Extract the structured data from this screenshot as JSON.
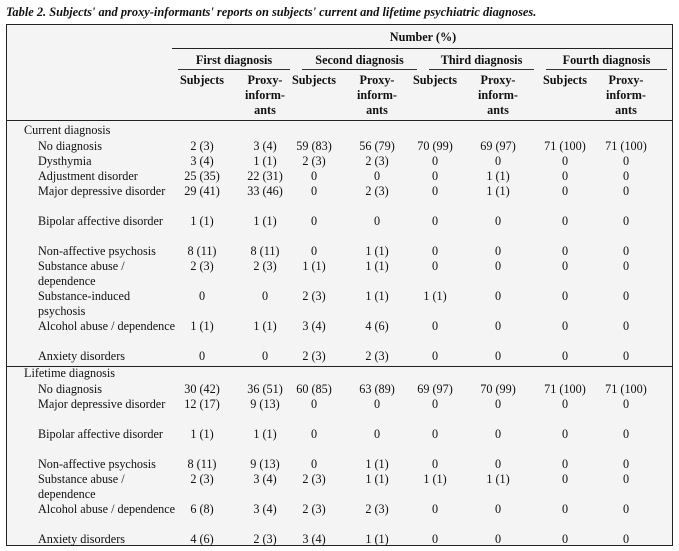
{
  "caption": "Table 2. Subjects' and proxy-informants' reports on subjects' current and lifetime psychiatric diagnoses.",
  "header": {
    "number_label": "Number (%)",
    "groups": [
      "First diagnosis",
      "Second diagnosis",
      "Third diagnosis",
      "Fourth diagnosis"
    ],
    "subjects_label": "Subjects",
    "proxy_label": "Proxy-\ninform-\nants"
  },
  "sections": [
    {
      "title": "Current diagnosis",
      "rows": [
        {
          "label": "No diagnosis",
          "values": [
            "2 (3)",
            "3 (4)",
            "59 (83)",
            "56 (79)",
            "70 (99)",
            "69 (97)",
            "71 (100)",
            "71 (100)"
          ]
        },
        {
          "label": "Dysthymia",
          "values": [
            "3 (4)",
            "1 (1)",
            "2 (3)",
            "2 (3)",
            "0",
            "0",
            "0",
            "0"
          ]
        },
        {
          "label": "Adjustment disorder",
          "values": [
            "25 (35)",
            "22 (31)",
            "0",
            "0",
            "0",
            "1 (1)",
            "0",
            "0"
          ]
        },
        {
          "label": "Major depressive disorder",
          "values": [
            "29 (41)",
            "33 (46)",
            "0",
            "2 (3)",
            "0",
            "1 (1)",
            "0",
            "0"
          ]
        },
        {
          "label": "Bipolar affective disorder",
          "values": [
            "1 (1)",
            "1 (1)",
            "0",
            "0",
            "0",
            "0",
            "0",
            "0"
          ]
        },
        {
          "label": "Non-affective psychosis",
          "values": [
            "8 (11)",
            "8 (11)",
            "0",
            "1 (1)",
            "0",
            "0",
            "0",
            "0"
          ]
        },
        {
          "label": "Substance abuse / dependence",
          "values": [
            "2 (3)",
            "2 (3)",
            "1 (1)",
            "1 (1)",
            "0",
            "0",
            "0",
            "0"
          ]
        },
        {
          "label": "Substance-induced psychosis",
          "values": [
            "0",
            "0",
            "2 (3)",
            "1 (1)",
            "1 (1)",
            "0",
            "0",
            "0"
          ]
        },
        {
          "label": "Alcohol abuse / dependence",
          "values": [
            "1 (1)",
            "1 (1)",
            "3 (4)",
            "4 (6)",
            "0",
            "0",
            "0",
            "0"
          ]
        },
        {
          "label": "Anxiety disorders",
          "values": [
            "0",
            "0",
            "2 (3)",
            "2 (3)",
            "0",
            "0",
            "0",
            "0"
          ]
        }
      ]
    },
    {
      "title": "Lifetime diagnosis",
      "rows": [
        {
          "label": "No diagnosis",
          "values": [
            "30 (42)",
            "36 (51)",
            "60 (85)",
            "63 (89)",
            "69 (97)",
            "70 (99)",
            "71 (100)",
            "71 (100)"
          ]
        },
        {
          "label": "Major depressive disorder",
          "values": [
            "12 (17)",
            "9 (13)",
            "0",
            "0",
            "0",
            "0",
            "0",
            "0"
          ]
        },
        {
          "label": "Bipolar affective disorder",
          "values": [
            "1 (1)",
            "1 (1)",
            "0",
            "0",
            "0",
            "0",
            "0",
            "0"
          ]
        },
        {
          "label": "Non-affective psychosis",
          "values": [
            "8 (11)",
            "9 (13)",
            "0",
            "1 (1)",
            "0",
            "0",
            "0",
            "0"
          ]
        },
        {
          "label": "Substance abuse / dependence",
          "values": [
            "2 (3)",
            "3 (4)",
            "2 (3)",
            "1 (1)",
            "1 (1)",
            "1 (1)",
            "0",
            "0"
          ]
        },
        {
          "label": "Alcohol abuse / dependence",
          "values": [
            "6 (8)",
            "3 (4)",
            "2 (3)",
            "2 (3)",
            "0",
            "0",
            "0",
            "0"
          ]
        },
        {
          "label": "Anxiety disorders",
          "values": [
            "4 (6)",
            "2 (3)",
            "3 (4)",
            "1 (1)",
            "0",
            "0",
            "0",
            "0"
          ]
        }
      ]
    }
  ]
}
